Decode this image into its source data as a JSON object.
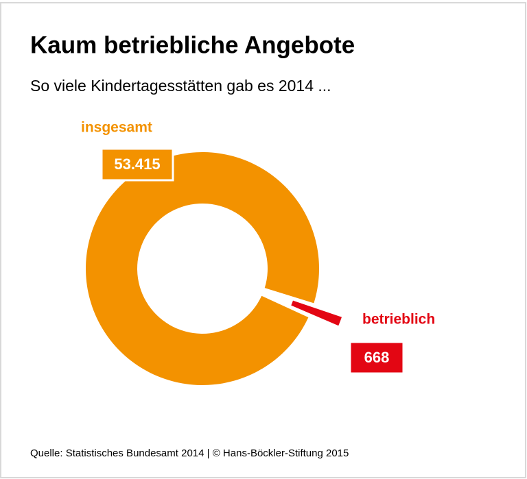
{
  "chart_data": {
    "type": "pie",
    "title": "Kaum betriebliche Angebote",
    "subtitle": "So viele Kindertagesstätten gab es 2014 ...",
    "categories": [
      "insgesamt",
      "betrieblich"
    ],
    "values": [
      53415,
      668
    ],
    "value_labels": [
      "53.415",
      "668"
    ],
    "colors": [
      "#f39200",
      "#e30613"
    ],
    "source": "Quelle: Statistisches Bundesamt 2014 | © Hans-Böckler-Stiftung 2015"
  }
}
